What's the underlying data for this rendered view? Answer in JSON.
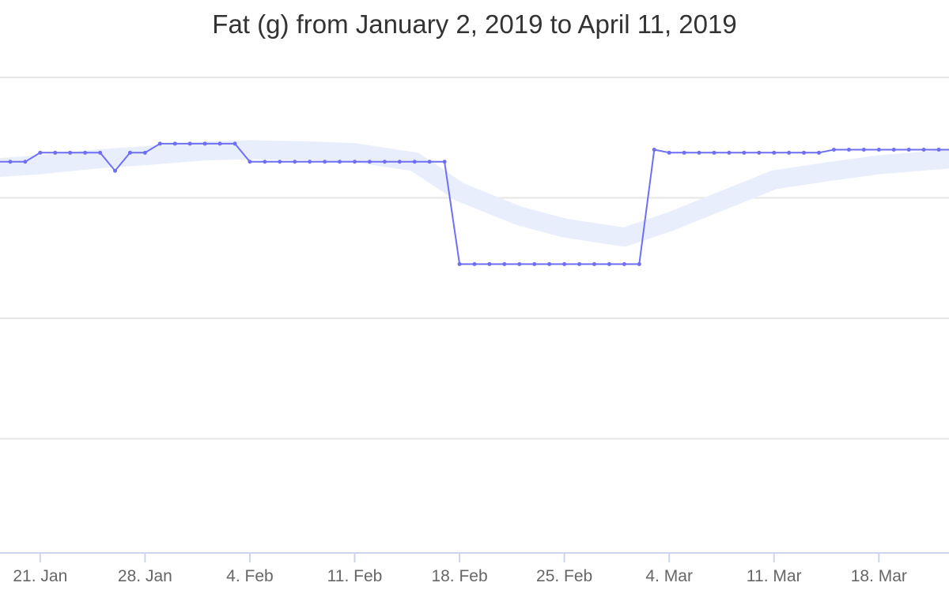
{
  "chart_data": {
    "type": "line",
    "title": "Fat (g) from January 2, 2019 to April 11, 2019",
    "xlabel": "",
    "ylabel": "",
    "x_tick_labels": [
      "21. Jan",
      "28. Jan",
      "4. Feb",
      "11. Feb",
      "18. Feb",
      "25. Feb",
      "4. Mar",
      "11. Mar",
      "18. Mar"
    ],
    "x_ticks": [
      "2019-01-21",
      "2019-01-28",
      "2019-02-04",
      "2019-02-11",
      "2019-02-18",
      "2019-02-25",
      "2019-03-04",
      "2019-03-11",
      "2019-03-18"
    ],
    "x_range": [
      "2019-01-18",
      "2019-03-23"
    ],
    "ylim": [
      0,
      80
    ],
    "y_gridlines": [
      0,
      20,
      40,
      60,
      80
    ],
    "grid": true,
    "legend": "none",
    "colors": {
      "daily": "#6f6ff5",
      "trend": "#e8eefc",
      "grid": "#e6e6e6",
      "axis": "#ccd6eb"
    },
    "series": [
      {
        "kind": "daily",
        "x": [
          "2019-01-18",
          "2019-01-19",
          "2019-01-20",
          "2019-01-21",
          "2019-01-22",
          "2019-01-23",
          "2019-01-24",
          "2019-01-25",
          "2019-01-26",
          "2019-01-27",
          "2019-01-28",
          "2019-01-29",
          "2019-01-30",
          "2019-01-31",
          "2019-02-01",
          "2019-02-02",
          "2019-02-03",
          "2019-02-04",
          "2019-02-05",
          "2019-02-06",
          "2019-02-07",
          "2019-02-08",
          "2019-02-09",
          "2019-02-10",
          "2019-02-11",
          "2019-02-12",
          "2019-02-13",
          "2019-02-14",
          "2019-02-15",
          "2019-02-16",
          "2019-02-17",
          "2019-02-18",
          "2019-02-19",
          "2019-02-20",
          "2019-02-21",
          "2019-02-22",
          "2019-02-23",
          "2019-02-24",
          "2019-02-25",
          "2019-02-26",
          "2019-02-27",
          "2019-02-28",
          "2019-03-01",
          "2019-03-02",
          "2019-03-03",
          "2019-03-04",
          "2019-03-05",
          "2019-03-06",
          "2019-03-07",
          "2019-03-08",
          "2019-03-09",
          "2019-03-10",
          "2019-03-11",
          "2019-03-12",
          "2019-03-13",
          "2019-03-14",
          "2019-03-15",
          "2019-03-16",
          "2019-03-17",
          "2019-03-18",
          "2019-03-19",
          "2019-03-20",
          "2019-03-21",
          "2019-03-22",
          "2019-03-23"
        ],
        "values": [
          66,
          66,
          66,
          67.5,
          67.5,
          67.5,
          67.5,
          67.5,
          64.5,
          67.5,
          67.5,
          69,
          69,
          69,
          69,
          69,
          69,
          66,
          66,
          66,
          66,
          66,
          66,
          66,
          66,
          66,
          66,
          66,
          66,
          66,
          66,
          49,
          49,
          49,
          49,
          49,
          49,
          49,
          49,
          49,
          49,
          49,
          49,
          49,
          68,
          67.5,
          67.5,
          67.5,
          67.5,
          67.5,
          67.5,
          67.5,
          67.5,
          67.5,
          67.5,
          67.5,
          68,
          68,
          68,
          68,
          68,
          68,
          68,
          68,
          68
        ]
      },
      {
        "kind": "trend",
        "x": [
          "2019-01-18",
          "2019-01-21",
          "2019-01-25",
          "2019-01-28",
          "2019-02-01",
          "2019-02-04",
          "2019-02-08",
          "2019-02-11",
          "2019-02-15",
          "2019-02-18",
          "2019-02-22",
          "2019-02-25",
          "2019-03-01",
          "2019-03-04",
          "2019-03-08",
          "2019-03-11",
          "2019-03-15",
          "2019-03-18",
          "2019-03-23"
        ],
        "values": [
          65,
          65.5,
          66.5,
          67,
          67.8,
          68,
          67.8,
          67.5,
          66,
          61,
          57,
          55,
          53.5,
          56,
          60,
          63,
          64.5,
          65.5,
          66.5
        ]
      }
    ]
  }
}
